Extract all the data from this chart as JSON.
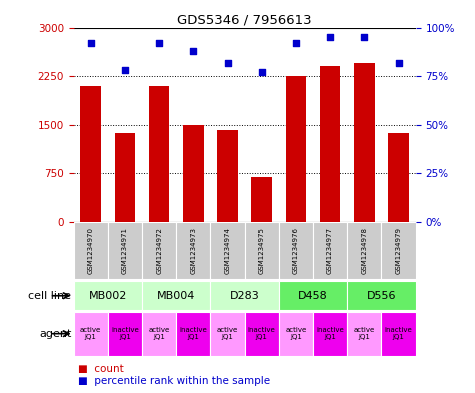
{
  "title": "GDS5346 / 7956613",
  "samples": [
    "GSM1234970",
    "GSM1234971",
    "GSM1234972",
    "GSM1234973",
    "GSM1234974",
    "GSM1234975",
    "GSM1234976",
    "GSM1234977",
    "GSM1234978",
    "GSM1234979"
  ],
  "counts": [
    2100,
    1380,
    2100,
    1500,
    1420,
    700,
    2250,
    2400,
    2450,
    1380
  ],
  "percentiles": [
    92,
    78,
    92,
    88,
    82,
    77,
    92,
    95,
    95,
    82
  ],
  "ylim_left": [
    0,
    3000
  ],
  "ylim_right": [
    0,
    100
  ],
  "yticks_left": [
    0,
    750,
    1500,
    2250,
    3000
  ],
  "yticks_right": [
    0,
    25,
    50,
    75,
    100
  ],
  "bar_color": "#cc0000",
  "dot_color": "#0000cc",
  "cell_lines": [
    {
      "label": "MB002",
      "cols": [
        0,
        1
      ],
      "color": "#ccffcc"
    },
    {
      "label": "MB004",
      "cols": [
        2,
        3
      ],
      "color": "#ccffcc"
    },
    {
      "label": "D283",
      "cols": [
        4,
        5
      ],
      "color": "#ccffcc"
    },
    {
      "label": "D458",
      "cols": [
        6,
        7
      ],
      "color": "#66ee66"
    },
    {
      "label": "D556",
      "cols": [
        8,
        9
      ],
      "color": "#66ee66"
    }
  ],
  "agents": [
    "active\nJQ1",
    "inactive\nJQ1",
    "active\nJQ1",
    "inactive\nJQ1",
    "active\nJQ1",
    "inactive\nJQ1",
    "active\nJQ1",
    "inactive\nJQ1",
    "active\nJQ1",
    "inactive\nJQ1"
  ],
  "agent_active_color": "#ff99ff",
  "agent_inactive_color": "#ee00ee",
  "gsm_bg_color": "#cccccc",
  "cell_line_row_label": "cell line",
  "agent_row_label": "agent",
  "legend_count_color": "#cc0000",
  "legend_pct_color": "#0000cc",
  "legend_count_label": "count",
  "legend_pct_label": "percentile rank within the sample",
  "fig_width": 4.75,
  "fig_height": 3.93,
  "dpi": 100
}
